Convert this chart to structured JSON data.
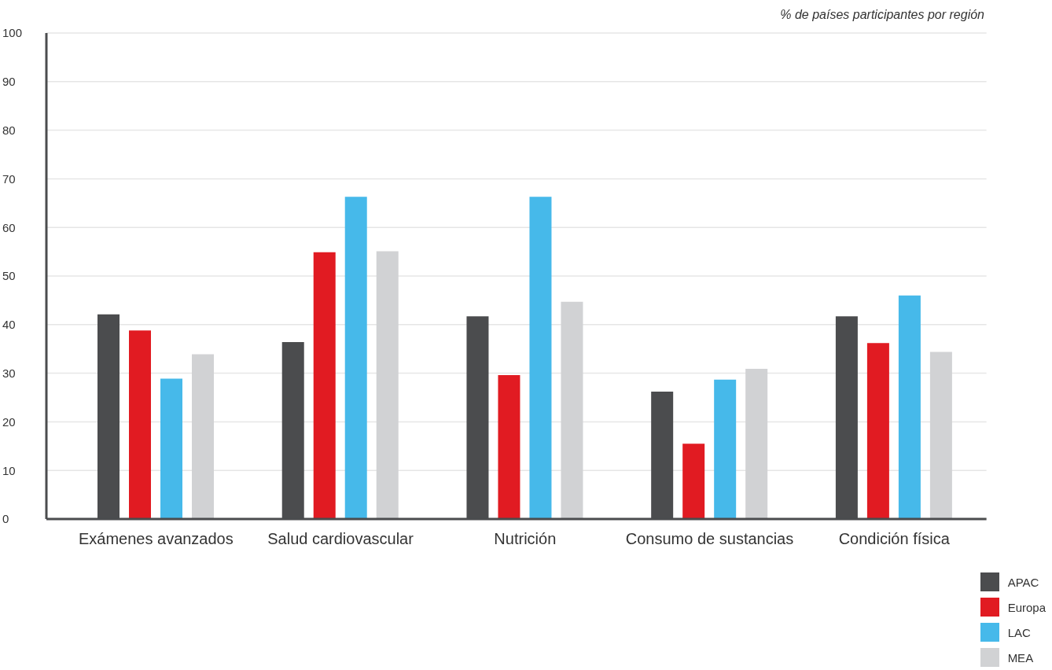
{
  "chart_data": {
    "type": "bar",
    "title": "% de países participantes por región",
    "categories": [
      "Exámenes avanzados",
      "Salud cardiovascular",
      "Nutrición",
      "Consumo de sustancias",
      "Condición física"
    ],
    "series": [
      {
        "name": "APAC",
        "color": "#4b4c4e",
        "values": [
          42.1,
          36.4,
          41.7,
          26.2,
          41.7
        ]
      },
      {
        "name": "Europa",
        "color": "#e11b22",
        "values": [
          38.8,
          54.9,
          29.6,
          15.5,
          36.2
        ]
      },
      {
        "name": "LAC",
        "color": "#46b9ea",
        "values": [
          28.9,
          66.3,
          66.3,
          28.7,
          46.0
        ]
      },
      {
        "name": "MEA",
        "color": "#d1d2d4",
        "values": [
          33.9,
          55.1,
          44.7,
          30.9,
          34.4
        ]
      }
    ],
    "ylim": [
      0,
      100
    ],
    "yticks": [
      0,
      10,
      20,
      30,
      40,
      50,
      60,
      70,
      80,
      90,
      100
    ],
    "grid": "y",
    "legend": "bottom right"
  }
}
